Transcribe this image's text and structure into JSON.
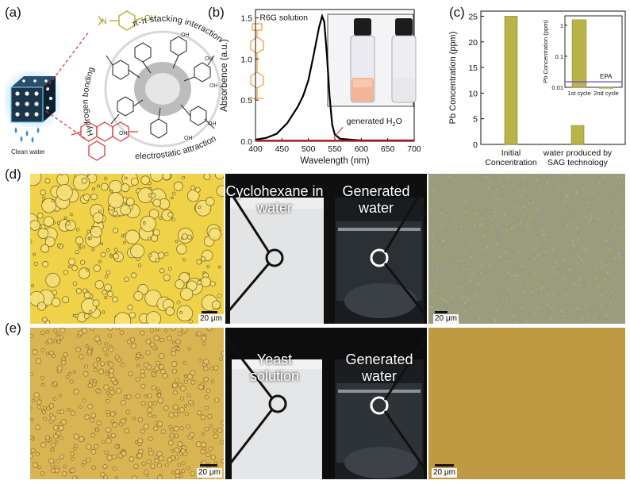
{
  "panels": {
    "a": "(a)",
    "b": "(b)",
    "c": "(c)",
    "d": "(d)",
    "e": "(e)"
  },
  "schematic": {
    "pi_stacking": "π-π stacking interaction",
    "hydrogen_bonding": "Hydrogen bonding",
    "electrostatic": "electrostatic attraction",
    "clean_water": "Clean water",
    "oh_group": "OH",
    "no2_group": "N",
    "chem_color": "#c8c830",
    "dye_color": "#e0393c",
    "orange_dye": "#f0a040"
  },
  "chart_data": [
    {
      "type": "line",
      "panel": "b",
      "xlabel": "Wavelength (nm)",
      "ylabel": "Absorbence (a.u.)",
      "xlim": [
        400,
        700
      ],
      "ylim": [
        0,
        1.6
      ],
      "xticks": [
        400,
        450,
        500,
        550,
        600,
        650,
        700
      ],
      "yticks": [
        0.0,
        0.5,
        1.0,
        1.5
      ],
      "series": [
        {
          "name": "R6G solution",
          "color": "#000000",
          "x": [
            400,
            420,
            440,
            460,
            480,
            490,
            500,
            510,
            520,
            526,
            530,
            535,
            540,
            545,
            550,
            560,
            580,
            600,
            650,
            700
          ],
          "y": [
            0.02,
            0.04,
            0.09,
            0.22,
            0.42,
            0.55,
            0.74,
            1.05,
            1.38,
            1.52,
            1.45,
            1.05,
            0.55,
            0.2,
            0.08,
            0.03,
            0.02,
            0.01,
            0.01,
            0.01
          ]
        },
        {
          "name": "generated H2O",
          "color": "#e01010",
          "x": [
            400,
            450,
            500,
            550,
            600,
            650,
            700
          ],
          "y": [
            0.01,
            0.01,
            0.01,
            0.01,
            0.01,
            0.01,
            0.01
          ]
        }
      ],
      "annotations": {
        "r6g": "R6G solution",
        "generated_prefix": "generated H",
        "generated_sub": "2",
        "generated_suffix": "O"
      }
    },
    {
      "type": "bar",
      "panel": "c",
      "ylabel": "Pb Concentration (ppm)",
      "categories": [
        "Initial Concentration",
        "water produced by SAG technology"
      ],
      "category_lines": [
        [
          "Initial",
          "Concentration"
        ],
        [
          "water produced by",
          "SAG technology"
        ]
      ],
      "values": [
        25,
        3.7
      ],
      "ylim": [
        0,
        26
      ],
      "yticks": [
        0,
        5,
        10,
        15,
        20,
        25
      ],
      "bar_color": "#b8b44a",
      "inset": {
        "type": "bar",
        "ylabel": "Pb Concentration (ppm)",
        "scale": "log",
        "categories": [
          "1st cycle",
          "2nd cycle"
        ],
        "values": [
          1.5,
          0.008
        ],
        "ylim": [
          0.01,
          2
        ],
        "yticks": [
          0.01,
          0.1,
          1
        ],
        "ytick_labels": [
          "0.01",
          "0.1",
          "1"
        ],
        "reference_line": {
          "label": "EPA",
          "value": 0.015,
          "color": "#6a3fd0"
        }
      }
    }
  ],
  "photos": {
    "d_left_label": "Cyclohexane in water",
    "d_right_label": "Generated water",
    "e_left_label": "Yeast solution",
    "e_right_label": "Generated water"
  },
  "scalebars": {
    "d_left": "20 μm",
    "d_right": "20 μm",
    "e_left": "20 μm",
    "e_right": "20 μm"
  }
}
